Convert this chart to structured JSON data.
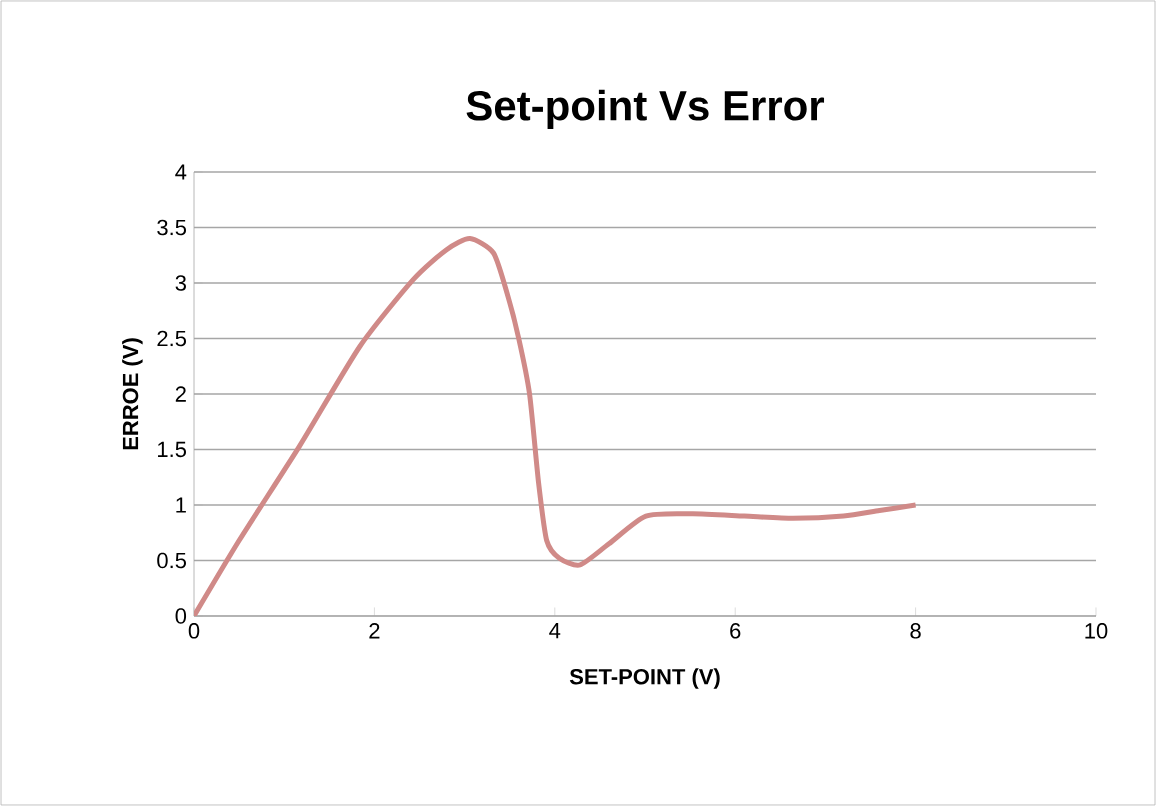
{
  "chart_data": {
    "type": "line",
    "title": "Set-point Vs Error",
    "xlabel": "SET-POINT (V)",
    "ylabel": "ERROE (V)",
    "series": [
      {
        "color": "#d08a88",
        "x": [
          0,
          0.5,
          1.17,
          1.84,
          2.43,
          2.8,
          3.06,
          3.32,
          3.47,
          3.6,
          3.72,
          3.82,
          3.91,
          4.05,
          4.28,
          4.6,
          5.01,
          5.53,
          6.1,
          6.64,
          7.2,
          7.6,
          8
        ],
        "values": [
          0,
          0.68,
          1.53,
          2.43,
          3.03,
          3.3,
          3.4,
          3.27,
          2.91,
          2.5,
          2.0,
          1.2,
          0.68,
          0.52,
          0.46,
          0.65,
          0.9,
          0.92,
          0.9,
          0.88,
          0.9,
          0.95,
          1.0
        ]
      }
    ],
    "xlim": [
      0,
      10
    ],
    "xticks": [
      0,
      2,
      4,
      6,
      8,
      10
    ],
    "ylim": [
      0,
      4
    ],
    "yticks": [
      0,
      0.5,
      1,
      1.5,
      2,
      2.5,
      3,
      3.5,
      4
    ],
    "grid": "y",
    "line_style": "solid",
    "marker": "none"
  }
}
